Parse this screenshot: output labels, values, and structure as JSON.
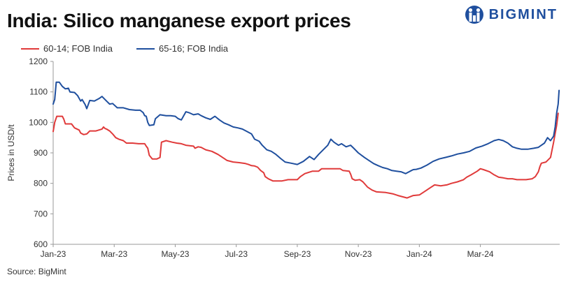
{
  "header": {
    "title": "India: Silico manganese export prices",
    "brand": "BIGMINT"
  },
  "source": "Source: BigMint",
  "colors": {
    "series1": "#e03a3a",
    "series2": "#1f4f9e",
    "axis": "#999999",
    "grid": "#dddddd",
    "brand": "#1f4f9e"
  },
  "chart_data": {
    "type": "line",
    "title": "India: Silico manganese export prices",
    "xlabel": "",
    "ylabel": "Prices in USD/t",
    "ylim": [
      600,
      1200
    ],
    "yticks": [
      600,
      700,
      800,
      900,
      1000,
      1100,
      1200
    ],
    "xlim": [
      0,
      16.6
    ],
    "xtick_positions": [
      0,
      2,
      4,
      6,
      8,
      10,
      12,
      14
    ],
    "xtick_labels": [
      "Jan-23",
      "Mar-23",
      "May-23",
      "Jul-23",
      "Sep-23",
      "Nov-23",
      "Jan-24",
      "Mar-24"
    ],
    "legend_position": "top-left",
    "series": [
      {
        "name": "60-14; FOB India",
        "color": "#e03a3a",
        "points": [
          [
            0.0,
            970
          ],
          [
            0.05,
            1000
          ],
          [
            0.12,
            1020
          ],
          [
            0.3,
            1020
          ],
          [
            0.35,
            1010
          ],
          [
            0.4,
            995
          ],
          [
            0.6,
            995
          ],
          [
            0.7,
            982
          ],
          [
            0.85,
            975
          ],
          [
            0.9,
            965
          ],
          [
            1.0,
            960
          ],
          [
            1.1,
            962
          ],
          [
            1.2,
            972
          ],
          [
            1.4,
            972
          ],
          [
            1.6,
            978
          ],
          [
            1.65,
            985
          ],
          [
            1.7,
            980
          ],
          [
            1.75,
            978
          ],
          [
            1.85,
            972
          ],
          [
            1.95,
            962
          ],
          [
            2.05,
            950
          ],
          [
            2.15,
            945
          ],
          [
            2.3,
            940
          ],
          [
            2.4,
            932
          ],
          [
            2.6,
            932
          ],
          [
            2.8,
            930
          ],
          [
            3.0,
            930
          ],
          [
            3.05,
            922
          ],
          [
            3.1,
            915
          ],
          [
            3.15,
            892
          ],
          [
            3.25,
            880
          ],
          [
            3.4,
            880
          ],
          [
            3.5,
            885
          ],
          [
            3.55,
            935
          ],
          [
            3.7,
            940
          ],
          [
            3.9,
            935
          ],
          [
            4.05,
            932
          ],
          [
            4.2,
            930
          ],
          [
            4.35,
            925
          ],
          [
            4.6,
            922
          ],
          [
            4.65,
            915
          ],
          [
            4.75,
            920
          ],
          [
            4.85,
            918
          ],
          [
            5.0,
            910
          ],
          [
            5.2,
            905
          ],
          [
            5.4,
            895
          ],
          [
            5.6,
            882
          ],
          [
            5.7,
            875
          ],
          [
            5.9,
            870
          ],
          [
            6.1,
            868
          ],
          [
            6.3,
            865
          ],
          [
            6.4,
            862
          ],
          [
            6.5,
            858
          ],
          [
            6.6,
            857
          ],
          [
            6.7,
            853
          ],
          [
            6.8,
            842
          ],
          [
            6.9,
            835
          ],
          [
            6.95,
            822
          ],
          [
            7.05,
            815
          ],
          [
            7.2,
            808
          ],
          [
            7.5,
            808
          ],
          [
            7.7,
            812
          ],
          [
            8.0,
            812
          ],
          [
            8.1,
            822
          ],
          [
            8.25,
            832
          ],
          [
            8.5,
            840
          ],
          [
            8.7,
            840
          ],
          [
            8.8,
            848
          ],
          [
            9.4,
            848
          ],
          [
            9.5,
            842
          ],
          [
            9.7,
            840
          ],
          [
            9.75,
            830
          ],
          [
            9.8,
            815
          ],
          [
            9.9,
            810
          ],
          [
            10.05,
            812
          ],
          [
            10.15,
            805
          ],
          [
            10.3,
            788
          ],
          [
            10.45,
            778
          ],
          [
            10.6,
            772
          ],
          [
            10.9,
            770
          ],
          [
            11.0,
            768
          ],
          [
            11.15,
            765
          ],
          [
            11.3,
            760
          ],
          [
            11.45,
            756
          ],
          [
            11.6,
            752
          ],
          [
            11.8,
            760
          ],
          [
            12.0,
            762
          ],
          [
            12.2,
            775
          ],
          [
            12.35,
            785
          ],
          [
            12.5,
            795
          ],
          [
            12.7,
            792
          ],
          [
            12.9,
            795
          ],
          [
            13.05,
            800
          ],
          [
            13.25,
            805
          ],
          [
            13.45,
            812
          ],
          [
            13.55,
            820
          ],
          [
            13.7,
            828
          ],
          [
            13.9,
            840
          ],
          [
            14.0,
            848
          ],
          [
            14.1,
            845
          ],
          [
            14.3,
            838
          ],
          [
            14.45,
            828
          ],
          [
            14.6,
            820
          ],
          [
            14.75,
            818
          ],
          [
            14.9,
            815
          ],
          [
            15.05,
            815
          ],
          [
            15.2,
            812
          ],
          [
            15.5,
            812
          ],
          [
            15.7,
            815
          ],
          [
            15.8,
            822
          ],
          [
            15.9,
            838
          ],
          [
            15.95,
            855
          ],
          [
            16.0,
            866
          ],
          [
            16.15,
            870
          ],
          [
            16.3,
            885
          ],
          [
            16.4,
            935
          ],
          [
            16.5,
            990
          ],
          [
            16.55,
            1030
          ]
        ]
      },
      {
        "name": "65-16; FOB India",
        "color": "#1f4f9e",
        "points": [
          [
            0.0,
            1060
          ],
          [
            0.05,
            1075
          ],
          [
            0.1,
            1132
          ],
          [
            0.2,
            1132
          ],
          [
            0.3,
            1118
          ],
          [
            0.4,
            1110
          ],
          [
            0.5,
            1112
          ],
          [
            0.55,
            1100
          ],
          [
            0.7,
            1098
          ],
          [
            0.8,
            1088
          ],
          [
            0.9,
            1070
          ],
          [
            0.95,
            1075
          ],
          [
            1.05,
            1058
          ],
          [
            1.1,
            1045
          ],
          [
            1.2,
            1072
          ],
          [
            1.35,
            1070
          ],
          [
            1.5,
            1078
          ],
          [
            1.6,
            1085
          ],
          [
            1.65,
            1080
          ],
          [
            1.75,
            1070
          ],
          [
            1.85,
            1060
          ],
          [
            1.95,
            1062
          ],
          [
            2.1,
            1048
          ],
          [
            2.3,
            1048
          ],
          [
            2.5,
            1042
          ],
          [
            2.7,
            1040
          ],
          [
            2.85,
            1040
          ],
          [
            2.95,
            1032
          ],
          [
            3.0,
            1022
          ],
          [
            3.05,
            1020
          ],
          [
            3.1,
            1000
          ],
          [
            3.15,
            990
          ],
          [
            3.3,
            992
          ],
          [
            3.35,
            1012
          ],
          [
            3.5,
            1025
          ],
          [
            3.7,
            1022
          ],
          [
            3.85,
            1022
          ],
          [
            4.0,
            1020
          ],
          [
            4.1,
            1012
          ],
          [
            4.2,
            1008
          ],
          [
            4.35,
            1035
          ],
          [
            4.45,
            1032
          ],
          [
            4.6,
            1025
          ],
          [
            4.75,
            1028
          ],
          [
            4.85,
            1022
          ],
          [
            5.0,
            1015
          ],
          [
            5.15,
            1010
          ],
          [
            5.3,
            1020
          ],
          [
            5.45,
            1008
          ],
          [
            5.6,
            998
          ],
          [
            5.75,
            992
          ],
          [
            5.9,
            985
          ],
          [
            6.05,
            982
          ],
          [
            6.2,
            978
          ],
          [
            6.35,
            970
          ],
          [
            6.5,
            962
          ],
          [
            6.6,
            945
          ],
          [
            6.75,
            938
          ],
          [
            6.85,
            925
          ],
          [
            7.0,
            910
          ],
          [
            7.15,
            905
          ],
          [
            7.3,
            895
          ],
          [
            7.45,
            882
          ],
          [
            7.6,
            870
          ],
          [
            7.8,
            866
          ],
          [
            8.0,
            862
          ],
          [
            8.2,
            872
          ],
          [
            8.3,
            880
          ],
          [
            8.4,
            888
          ],
          [
            8.55,
            878
          ],
          [
            8.7,
            895
          ],
          [
            8.85,
            910
          ],
          [
            9.0,
            925
          ],
          [
            9.1,
            945
          ],
          [
            9.2,
            935
          ],
          [
            9.35,
            925
          ],
          [
            9.45,
            930
          ],
          [
            9.6,
            920
          ],
          [
            9.75,
            925
          ],
          [
            9.85,
            915
          ],
          [
            10.0,
            900
          ],
          [
            10.2,
            885
          ],
          [
            10.35,
            875
          ],
          [
            10.5,
            865
          ],
          [
            10.65,
            858
          ],
          [
            10.8,
            852
          ],
          [
            10.95,
            848
          ],
          [
            11.1,
            842
          ],
          [
            11.25,
            840
          ],
          [
            11.4,
            838
          ],
          [
            11.55,
            832
          ],
          [
            11.7,
            840
          ],
          [
            11.8,
            845
          ],
          [
            11.9,
            846
          ],
          [
            12.05,
            850
          ],
          [
            12.25,
            860
          ],
          [
            12.45,
            872
          ],
          [
            12.65,
            880
          ],
          [
            12.85,
            885
          ],
          [
            13.05,
            890
          ],
          [
            13.25,
            896
          ],
          [
            13.45,
            900
          ],
          [
            13.65,
            905
          ],
          [
            13.85,
            916
          ],
          [
            14.05,
            922
          ],
          [
            14.25,
            930
          ],
          [
            14.45,
            940
          ],
          [
            14.6,
            944
          ],
          [
            14.75,
            940
          ],
          [
            14.9,
            932
          ],
          [
            15.05,
            920
          ],
          [
            15.2,
            915
          ],
          [
            15.35,
            912
          ],
          [
            15.55,
            912
          ],
          [
            15.75,
            915
          ],
          [
            15.9,
            918
          ],
          [
            16.0,
            925
          ],
          [
            16.1,
            932
          ],
          [
            16.2,
            950
          ],
          [
            16.3,
            940
          ],
          [
            16.4,
            955
          ],
          [
            16.45,
            985
          ],
          [
            16.5,
            1030
          ],
          [
            16.55,
            1060
          ],
          [
            16.58,
            1105
          ]
        ]
      }
    ]
  }
}
